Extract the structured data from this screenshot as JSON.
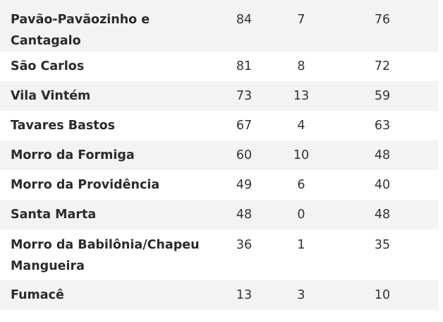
{
  "rows": [
    {
      "name": "Pavão-Pavãozinho e Cantagalo",
      "c1": "84",
      "c2": "7",
      "c3": "76"
    },
    {
      "name": "São Carlos",
      "c1": "81",
      "c2": "8",
      "c3": "72"
    },
    {
      "name": "Vila Vintém",
      "c1": "73",
      "c2": "13",
      "c3": "59"
    },
    {
      "name": "Tavares Bastos",
      "c1": "67",
      "c2": "4",
      "c3": "63"
    },
    {
      "name": "Morro da Formiga",
      "c1": "60",
      "c2": "10",
      "c3": "48"
    },
    {
      "name": "Morro da Providência",
      "c1": "49",
      "c2": "6",
      "c3": "40"
    },
    {
      "name": "Santa Marta",
      "c1": "48",
      "c2": "0",
      "c3": "48"
    },
    {
      "name": "Morro da Babilônia/Chapeu Mangueira",
      "c1": "36",
      "c2": "1",
      "c3": "35"
    },
    {
      "name": "Fumacê",
      "c1": "13",
      "c2": "3",
      "c3": "10"
    }
  ]
}
